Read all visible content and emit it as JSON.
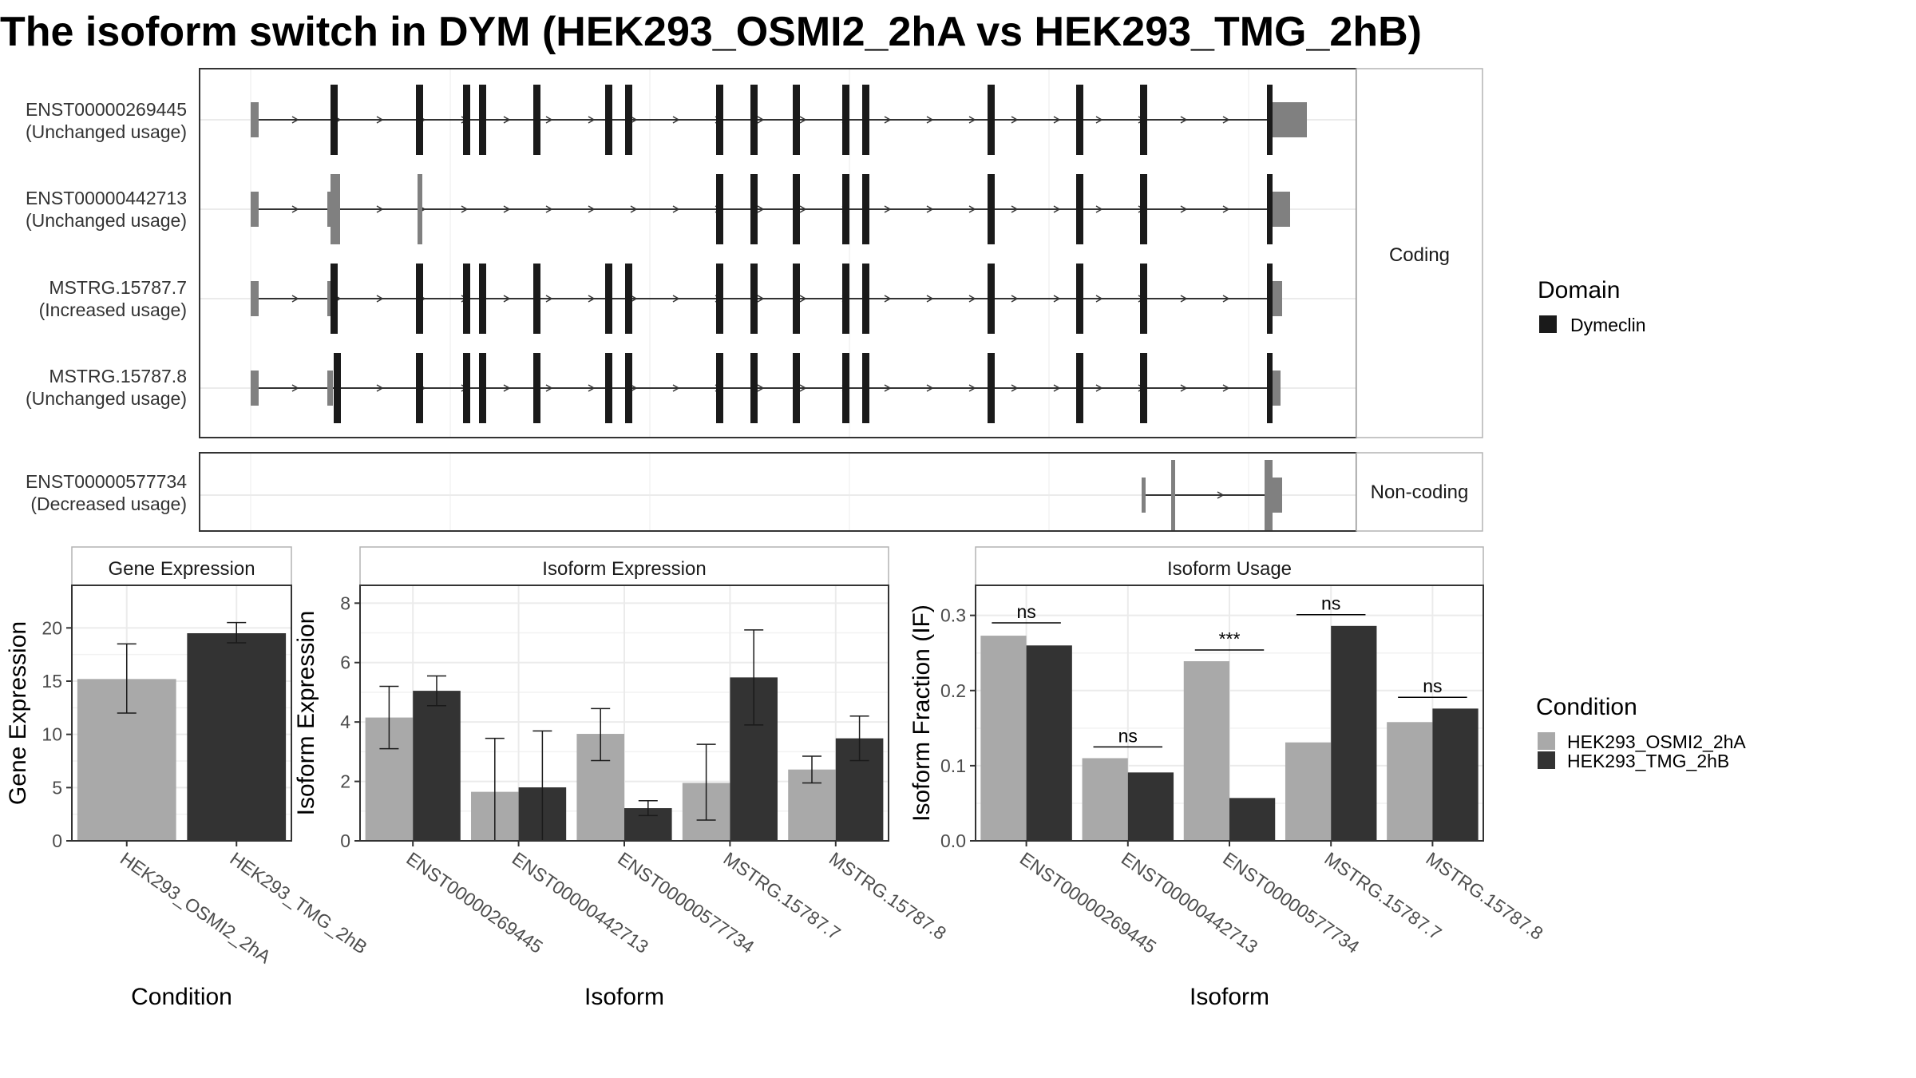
{
  "title": "The isoform switch in DYM (HEK293_OSMI2_2hA vs HEK293_TMG_2hB)",
  "colors": {
    "condA": "#a9a9a9",
    "condB": "#333333",
    "utr": "#808080",
    "cds": "#1a1a1a",
    "intron": "#333333"
  },
  "structure": {
    "panel_coding_label": "Coding",
    "panel_noncoding_label": "Non-coding",
    "coding_transcripts": [
      {
        "name": "ENST00000269445",
        "usage": "(Unchanged usage)"
      },
      {
        "name": "ENST00000442713",
        "usage": "(Unchanged usage)"
      },
      {
        "name": "MSTRG.15787.7",
        "usage": "(Increased usage)"
      },
      {
        "name": "MSTRG.15787.8",
        "usage": "(Unchanged usage)"
      }
    ],
    "noncoding_transcripts": [
      {
        "name": "ENST00000577734",
        "usage": "(Decreased usage)"
      }
    ]
  },
  "legend_domain": {
    "title": "Domain",
    "items": [
      {
        "label": "Dymeclin",
        "color": "#1a1a1a"
      }
    ]
  },
  "legend_condition": {
    "title": "Condition",
    "items": [
      {
        "label": "HEK293_OSMI2_2hA",
        "color": "#a9a9a9"
      },
      {
        "label": "HEK293_TMG_2hB",
        "color": "#333333"
      }
    ]
  },
  "chart_data": [
    {
      "type": "bar",
      "title": "Gene Expression",
      "xlabel": "Condition",
      "ylabel": "Gene Expression",
      "ylim": [
        0,
        24
      ],
      "yticks": [
        0,
        5,
        10,
        15,
        20
      ],
      "categories": [
        "HEK293_OSMI2_2hA",
        "HEK293_TMG_2hB"
      ],
      "values": [
        15.2,
        19.5
      ],
      "errors": [
        [
          12.0,
          18.5
        ],
        [
          18.6,
          20.5
        ]
      ]
    },
    {
      "type": "bar",
      "title": "Isoform Expression",
      "xlabel": "Isoform",
      "ylabel": "Isoform Expression",
      "ylim": [
        0,
        8.6
      ],
      "yticks": [
        0,
        2,
        4,
        6,
        8
      ],
      "categories": [
        "ENST00000269445",
        "ENST00000442713",
        "ENST00000577734",
        "MSTRG.15787.7",
        "MSTRG.15787.8"
      ],
      "series": [
        {
          "name": "HEK293_OSMI2_2hA",
          "values": [
            4.15,
            1.65,
            3.6,
            1.95,
            2.4
          ],
          "errors": [
            [
              3.1,
              5.2
            ],
            [
              0.0,
              3.45
            ],
            [
              2.7,
              4.45
            ],
            [
              0.7,
              3.25
            ],
            [
              1.95,
              2.85
            ]
          ]
        },
        {
          "name": "HEK293_TMG_2hB",
          "values": [
            5.05,
            1.8,
            1.1,
            5.5,
            3.45
          ],
          "errors": [
            [
              4.55,
              5.55
            ],
            [
              0.0,
              3.7
            ],
            [
              0.85,
              1.35
            ],
            [
              3.9,
              7.1
            ],
            [
              2.7,
              4.2
            ]
          ]
        }
      ]
    },
    {
      "type": "bar",
      "title": "Isoform Usage",
      "xlabel": "Isoform",
      "ylabel": "Isoform Fraction (IF)",
      "ylim": [
        0,
        0.34
      ],
      "yticks": [
        0.0,
        0.1,
        0.2,
        0.3
      ],
      "ytick_labels": [
        "0.0",
        "0.1",
        "0.2",
        "0.3"
      ],
      "categories": [
        "ENST00000269445",
        "ENST00000442713",
        "ENST00000577734",
        "MSTRG.15787.7",
        "MSTRG.15787.8"
      ],
      "series": [
        {
          "name": "HEK293_OSMI2_2hA",
          "values": [
            0.273,
            0.11,
            0.239,
            0.131,
            0.158
          ]
        },
        {
          "name": "HEK293_TMG_2hB",
          "values": [
            0.26,
            0.091,
            0.057,
            0.286,
            0.176
          ]
        }
      ],
      "significance": [
        {
          "category": "ENST00000269445",
          "label": "ns",
          "y": 0.29
        },
        {
          "category": "ENST00000442713",
          "label": "ns",
          "y": 0.125
        },
        {
          "category": "ENST00000577734",
          "label": "***",
          "y": 0.254
        },
        {
          "category": "MSTRG.15787.7",
          "label": "ns",
          "y": 0.301
        },
        {
          "category": "MSTRG.15787.8",
          "label": "ns",
          "y": 0.191
        }
      ]
    }
  ]
}
